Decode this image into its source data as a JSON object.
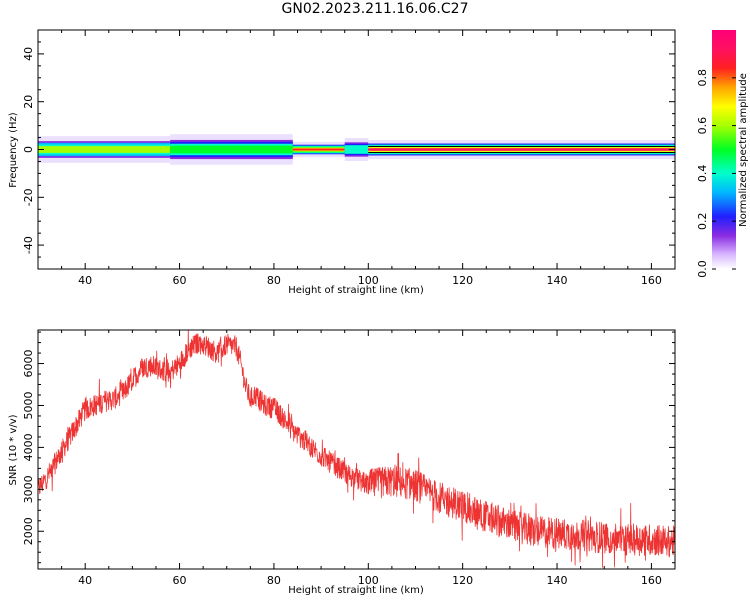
{
  "figure": {
    "title": "GN02.2023.211.16.06.C27"
  },
  "chart_data": [
    {
      "type": "heatmap",
      "panel": "spectrogram",
      "xlabel": "Height of straight line (km)",
      "ylabel": "Frequency (Hz)",
      "xlim": [
        30,
        165
      ],
      "ylim": [
        -50,
        50
      ],
      "xticks": [
        40,
        60,
        80,
        100,
        120,
        140,
        160
      ],
      "yticks": [
        -40,
        -20,
        0,
        20,
        40
      ],
      "colorbar": {
        "label": "Normalized spectral amplitude",
        "range": [
          0.0,
          1.0
        ],
        "ticks": [
          0.0,
          0.2,
          0.4,
          0.6,
          0.8
        ],
        "colormap": "hsv-like (white, violet, blue, cyan, green, yellow, orange, red, magenta)"
      },
      "segments": [
        {
          "x": [
            30,
            58
          ],
          "halfwidth_hz": 3.5,
          "core": 0.6
        },
        {
          "x": [
            58,
            84
          ],
          "halfwidth_hz": 4.0,
          "core": 0.5
        },
        {
          "x": [
            84,
            95
          ],
          "halfwidth_hz": 2.0,
          "core": 0.85
        },
        {
          "x": [
            95,
            100
          ],
          "halfwidth_hz": 3.0,
          "core": 0.4
        },
        {
          "x": [
            100,
            165
          ],
          "halfwidth_hz": 2.5,
          "core": 0.95
        }
      ],
      "reference_line": {
        "x": [
          100,
          165
        ],
        "y": 0
      }
    },
    {
      "type": "line",
      "panel": "snr",
      "xlabel": "Height of straight line (km)",
      "ylabel": "SNR (10 * v/v)",
      "xlim": [
        30,
        165
      ],
      "ylim": [
        1100,
        6800
      ],
      "xticks": [
        40,
        60,
        80,
        100,
        120,
        140,
        160
      ],
      "yticks": [
        2000,
        3000,
        4000,
        5000,
        6000
      ],
      "series": [
        {
          "color": "#ee3333",
          "x": [
            30,
            32,
            34,
            36,
            38,
            40,
            42,
            44,
            46,
            48,
            50,
            52,
            54,
            56,
            58,
            60,
            62,
            64,
            66,
            68,
            70,
            72,
            73,
            74,
            75,
            76,
            78,
            80,
            82,
            84,
            86,
            88,
            90,
            95,
            100,
            105,
            110,
            115,
            120,
            125,
            130,
            135,
            140,
            145,
            150,
            155,
            160,
            165
          ],
          "values": [
            3000,
            3300,
            3700,
            4100,
            4500,
            4900,
            5000,
            5100,
            5150,
            5300,
            5600,
            5900,
            5950,
            5850,
            5800,
            6000,
            6350,
            6500,
            6400,
            6250,
            6450,
            6400,
            6000,
            5450,
            5150,
            5250,
            5000,
            4950,
            4700,
            4400,
            4200,
            4000,
            3800,
            3400,
            3100,
            3200,
            3100,
            2800,
            2600,
            2350,
            2150,
            2000,
            1950,
            1900,
            1850,
            1800,
            1800,
            1750
          ]
        }
      ]
    }
  ]
}
